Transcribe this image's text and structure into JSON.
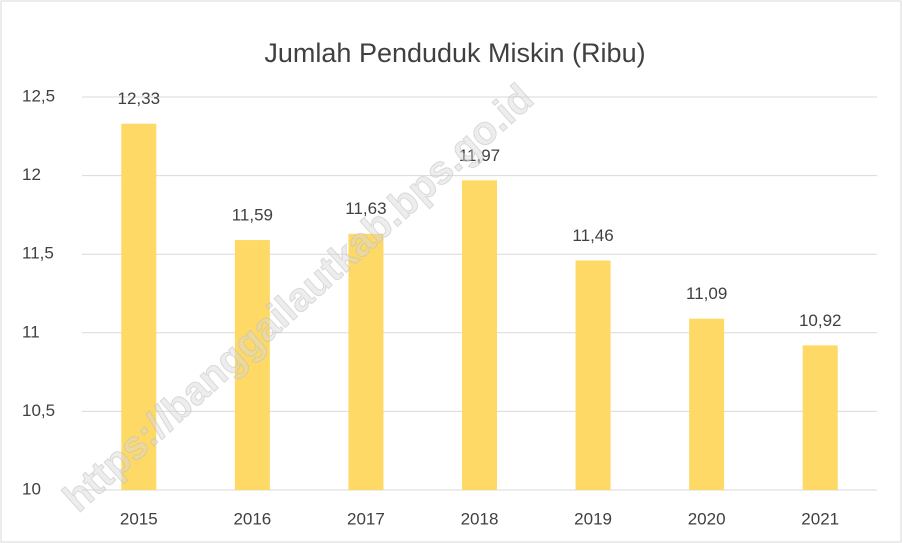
{
  "chart_data": {
    "type": "bar",
    "title": "Jumlah Penduduk Miskin (Ribu)",
    "categories": [
      "2015",
      "2016",
      "2017",
      "2018",
      "2019",
      "2020",
      "2021"
    ],
    "values": [
      12.33,
      11.59,
      11.63,
      11.97,
      11.46,
      11.09,
      10.92
    ],
    "value_labels": [
      "12,33",
      "11,59",
      "11,63",
      "11,97",
      "11,46",
      "11,09",
      "10,92"
    ],
    "color": "#fed966",
    "ylim": [
      10,
      12.5
    ],
    "yticks": [
      10,
      {
        "value": 10.5,
        "label": "10,5"
      },
      11,
      {
        "value": 11.5,
        "label": "11,5"
      },
      12,
      {
        "value": 12.5,
        "label": "12,5"
      }
    ],
    "grid": true,
    "watermark": "https://banggailautkab.bps.go.id"
  }
}
